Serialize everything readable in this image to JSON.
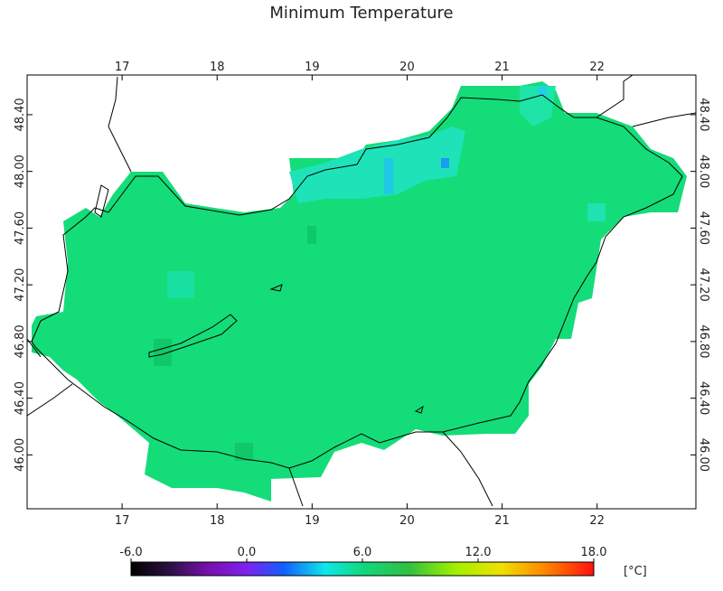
{
  "map": {
    "title": "Minimum Temperature",
    "lonlim": [
      16.0,
      23.04
    ],
    "latlim": [
      45.62,
      48.68
    ],
    "lon_ticks": [
      17,
      18,
      19,
      20,
      21,
      22
    ],
    "lat_ticks": [
      {
        "value": 46.0,
        "label": "46.00"
      },
      {
        "value": 46.4,
        "label": "46.40"
      },
      {
        "value": 46.8,
        "label": "46.80"
      },
      {
        "value": 47.2,
        "label": "47.20"
      },
      {
        "value": 47.6,
        "label": "47.60"
      },
      {
        "value": 48.0,
        "label": "48.00"
      },
      {
        "value": 48.4,
        "label": "48.40"
      }
    ],
    "colorbar": {
      "lim": [
        -6,
        18
      ],
      "ticks": [
        {
          "value": -6,
          "label": "-6.0"
        },
        {
          "value": 0,
          "label": "0.0"
        },
        {
          "value": 6,
          "label": "6.0"
        },
        {
          "value": 12,
          "label": "12.0"
        },
        {
          "value": 18,
          "label": "18.0"
        }
      ],
      "unit": "[°C]"
    }
  }
}
